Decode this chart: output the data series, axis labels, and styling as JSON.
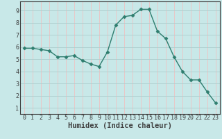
{
  "x": [
    0,
    1,
    2,
    3,
    4,
    5,
    6,
    7,
    8,
    9,
    10,
    11,
    12,
    13,
    14,
    15,
    16,
    17,
    18,
    19,
    20,
    21,
    22,
    23
  ],
  "y": [
    5.9,
    5.9,
    5.8,
    5.7,
    5.2,
    5.2,
    5.3,
    4.9,
    4.6,
    4.4,
    5.6,
    7.8,
    8.5,
    8.6,
    9.1,
    9.1,
    7.3,
    6.7,
    5.2,
    4.0,
    3.3,
    3.3,
    2.3,
    1.4
  ],
  "xlabel": "Humidex (Indice chaleur)",
  "xlim": [
    -0.5,
    23.5
  ],
  "ylim": [
    0.5,
    9.75
  ],
  "yticks": [
    1,
    2,
    3,
    4,
    5,
    6,
    7,
    8,
    9
  ],
  "xticks": [
    0,
    1,
    2,
    3,
    4,
    5,
    6,
    7,
    8,
    9,
    10,
    11,
    12,
    13,
    14,
    15,
    16,
    17,
    18,
    19,
    20,
    21,
    22,
    23
  ],
  "line_color": "#2e7d6e",
  "marker": "D",
  "marker_size": 2.5,
  "line_width": 1.0,
  "bg_color": "#c8e8e8",
  "grid_major_color": "#b0d0d0",
  "grid_minor_color": "#e8c8c8",
  "axis_color": "#404040",
  "xlabel_fontsize": 7.5,
  "tick_fontsize": 6.0
}
